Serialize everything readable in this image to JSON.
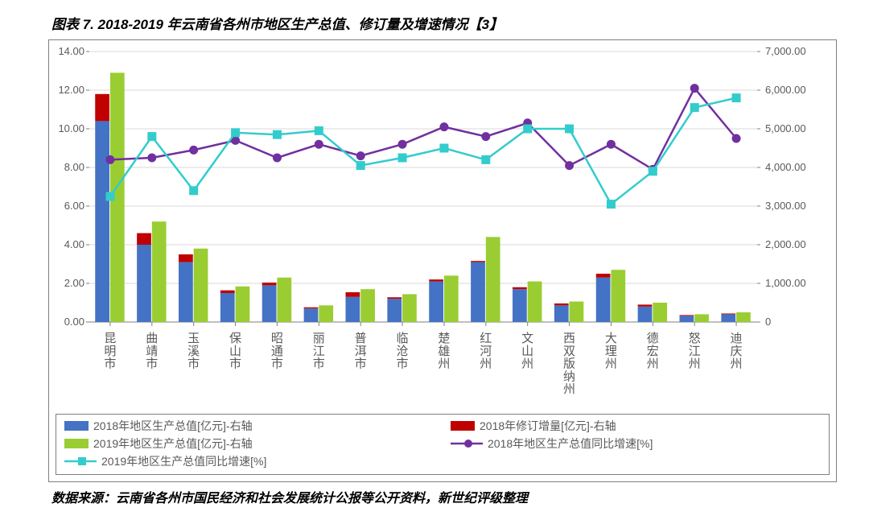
{
  "title": "图表 7. 2018-2019 年云南省各州市地区生产总值、修订量及增速情况【3】",
  "caption": "数据来源：云南省各州市国民经济和社会发展统计公报等公开资料，新世纪评级整理",
  "chart": {
    "type": "combo-bar-line",
    "categories": [
      "昆明市",
      "曲靖市",
      "玉溪市",
      "保山市",
      "昭通市",
      "丽江市",
      "普洱市",
      "临沧市",
      "楚雄州",
      "红河州",
      "文山州",
      "西双版纳州",
      "大理州",
      "德宏州",
      "怒江州",
      "迪庆州"
    ],
    "left_axis": {
      "min": 0,
      "max": 14,
      "step": 2,
      "ticks": [
        "0.00",
        "2.00",
        "4.00",
        "6.00",
        "8.00",
        "10.00",
        "12.00",
        "14.00"
      ],
      "fontsize": 13,
      "color": "#595959"
    },
    "right_axis": {
      "min": 0,
      "max": 7000,
      "step": 1000,
      "ticks": [
        "0",
        "1,000.00",
        "2,000.00",
        "3,000.00",
        "4,000.00",
        "5,000.00",
        "6,000.00",
        "7,000.00"
      ],
      "fontsize": 13,
      "color": "#595959"
    },
    "series_2018_gdp": [
      5200,
      2000,
      1550,
      750,
      950,
      350,
      650,
      600,
      1050,
      1550,
      850,
      430,
      1150,
      400,
      160,
      200
    ],
    "series_2018_rev": [
      5900,
      2300,
      1750,
      820,
      1020,
      380,
      770,
      640,
      1100,
      1580,
      900,
      480,
      1250,
      450,
      180,
      220
    ],
    "series_2019_gdp": [
      6450,
      2600,
      1900,
      920,
      1150,
      430,
      850,
      720,
      1200,
      2200,
      1050,
      530,
      1350,
      500,
      200,
      250
    ],
    "series_2018_growth": [
      8.4,
      8.5,
      8.9,
      9.4,
      8.5,
      9.2,
      8.6,
      9.2,
      10.1,
      9.6,
      10.3,
      8.1,
      9.2,
      7.9,
      12.1,
      9.5
    ],
    "series_2019_growth": [
      6.5,
      9.6,
      6.8,
      9.8,
      9.7,
      9.9,
      8.1,
      8.5,
      9.0,
      8.4,
      10.0,
      10.0,
      6.1,
      7.8,
      11.1,
      11.6
    ],
    "colors": {
      "bar_2018_gdp": "#4472c4",
      "bar_2018_rev": "#c00000",
      "bar_2019_gdp": "#9acd32",
      "line_2018": "#7030a0",
      "line_2019": "#33cccc",
      "grid": "#d9d9d9",
      "baseline": "#7f7f7f",
      "text": "#595959"
    },
    "line_width": 2.5,
    "marker_size": 5,
    "bar_group_width": 0.72,
    "background": "#ffffff"
  },
  "legend": {
    "items": [
      {
        "key": "bar_2018_gdp",
        "type": "bar",
        "label": "2018年地区生产总值[亿元]-右轴"
      },
      {
        "key": "bar_2018_rev",
        "type": "bar",
        "label": "2018年修订增量[亿元]-右轴"
      },
      {
        "key": "bar_2019_gdp",
        "type": "bar",
        "label": "2019年地区生产总值[亿元]-右轴"
      },
      {
        "key": "line_2018",
        "type": "line-circle",
        "label": "2018年地区生产总值同比增速[%]"
      },
      {
        "key": "line_2019",
        "type": "line-square",
        "label": "2019年地区生产总值同比增速[%]"
      }
    ]
  }
}
